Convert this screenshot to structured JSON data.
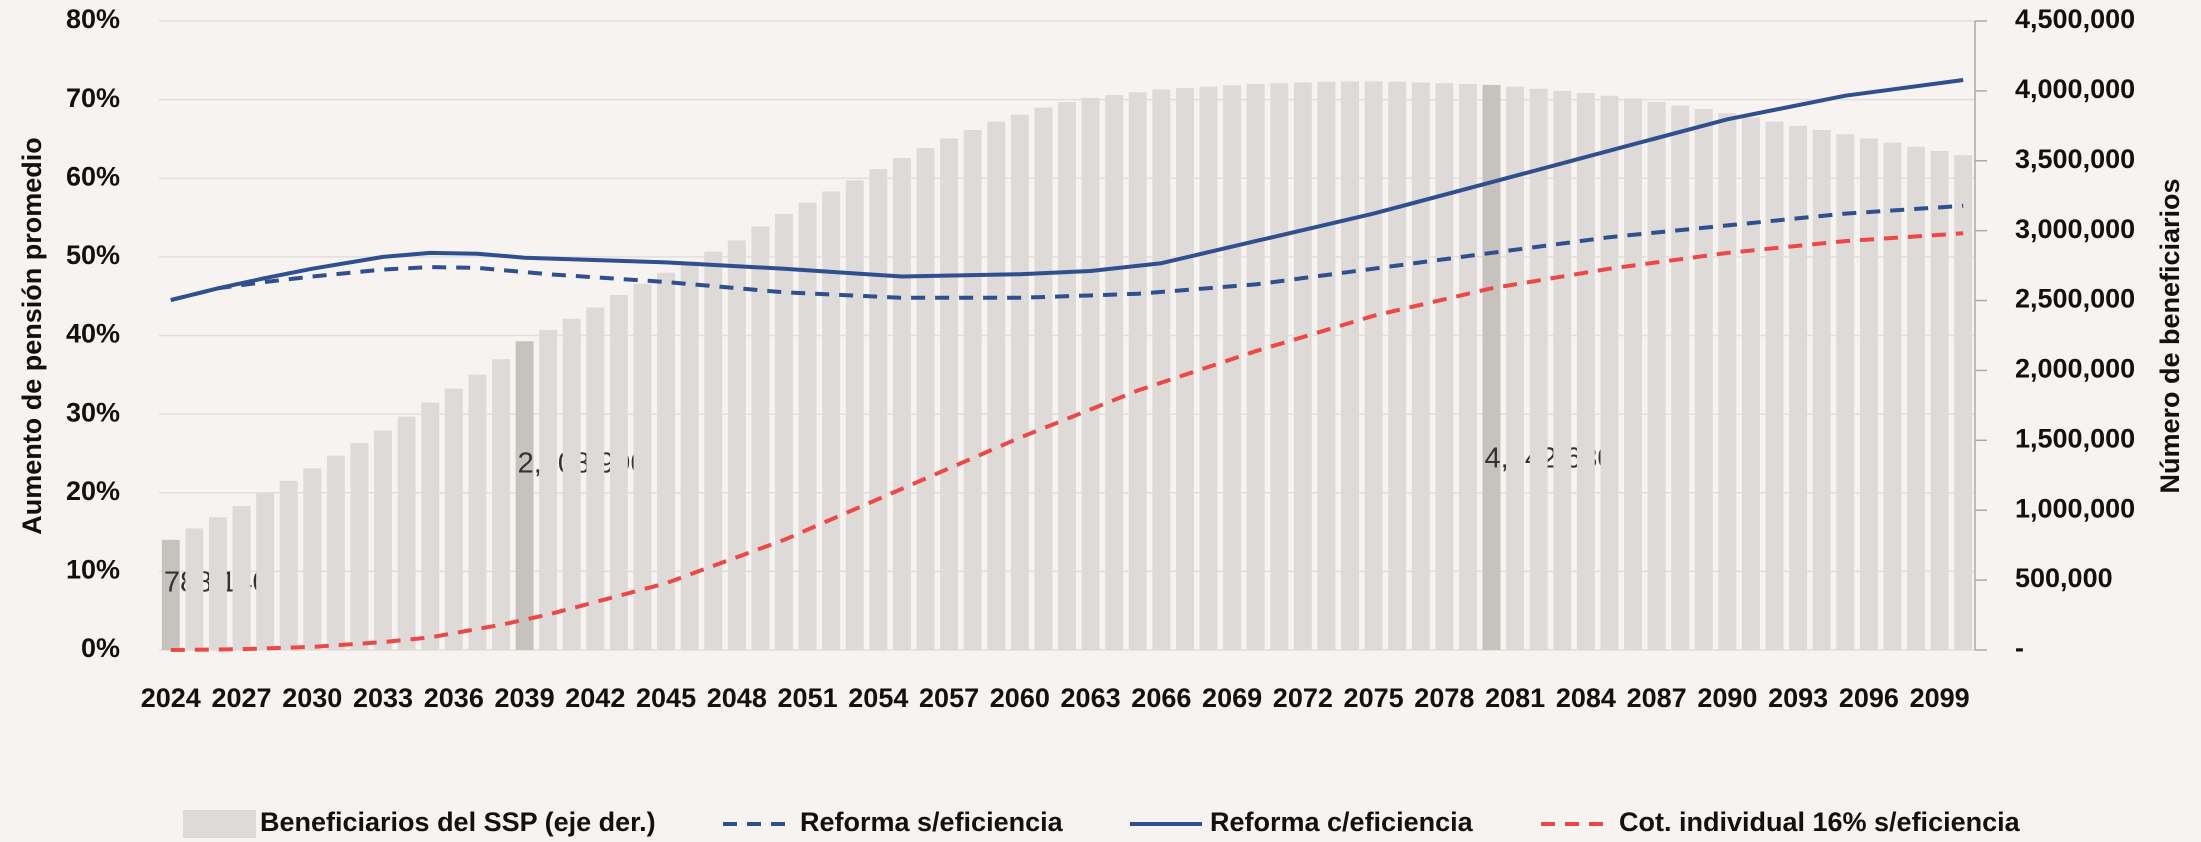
{
  "chart_data": {
    "type": "bar",
    "y_axis_label": "Aumento de pensión promedio",
    "y2_axis_label": "Número de beneficiarios",
    "categories": [
      "2024",
      null,
      null,
      "2027",
      null,
      null,
      "2030",
      null,
      null,
      "2033",
      null,
      null,
      "2036",
      null,
      null,
      "2039",
      null,
      null,
      "2042",
      null,
      null,
      "2045",
      null,
      null,
      "2048",
      null,
      null,
      "2051",
      null,
      null,
      "2054",
      null,
      null,
      "2057",
      null,
      null,
      "2060",
      null,
      null,
      "2063",
      null,
      null,
      "2066",
      null,
      null,
      "2069",
      null,
      null,
      "2072",
      null,
      null,
      "2075",
      null,
      null,
      "2078",
      null,
      null,
      "2081",
      null,
      null,
      "2084",
      null,
      null,
      "2087",
      null,
      null,
      "2090",
      null,
      null,
      "2093",
      null,
      null,
      "2096",
      null,
      null,
      "2099",
      null
    ],
    "bar_series": {
      "name": "Beneficiarios del SSP (eje der.)",
      "axis": "y2",
      "color": "#dedad7",
      "highlight_color": "#c6c2be",
      "values": [
        788140,
        870000,
        950000,
        1030000,
        1120000,
        1210000,
        1300000,
        1390000,
        1480000,
        1570000,
        1670000,
        1770000,
        1870000,
        1970000,
        2080000,
        2208990,
        2290000,
        2370000,
        2450000,
        2540000,
        2620000,
        2700000,
        2780000,
        2850000,
        2930000,
        3030000,
        3120000,
        3200000,
        3280000,
        3360000,
        3440000,
        3520000,
        3590000,
        3660000,
        3720000,
        3780000,
        3830000,
        3880000,
        3920000,
        3950000,
        3970000,
        3990000,
        4010000,
        4020000,
        4030000,
        4040000,
        4050000,
        4055000,
        4060000,
        4065000,
        4068000,
        4068000,
        4066000,
        4060000,
        4055000,
        4048000,
        4042630,
        4030000,
        4015000,
        4000000,
        3985000,
        3965000,
        3945000,
        3920000,
        3895000,
        3870000,
        3840000,
        3810000,
        3780000,
        3750000,
        3720000,
        3690000,
        3660000,
        3630000,
        3600000,
        3570000,
        3540000
      ],
      "value_labels": [
        "788,140",
        null,
        null,
        null,
        null,
        null,
        null,
        null,
        null,
        null,
        null,
        null,
        null,
        null,
        null,
        "2,208,990",
        null,
        null,
        null,
        null,
        null,
        null,
        null,
        null,
        null,
        null,
        null,
        null,
        null,
        null,
        null,
        null,
        null,
        null,
        null,
        null,
        null,
        null,
        null,
        null,
        null,
        null,
        null,
        null,
        null,
        null,
        null,
        null,
        null,
        null,
        null,
        null,
        null,
        null,
        null,
        null,
        "4,042,630",
        null,
        null,
        null,
        null,
        null,
        null,
        null,
        null,
        null,
        null,
        null,
        null,
        null,
        null,
        null,
        null,
        null,
        null,
        null,
        null
      ]
    },
    "series": [
      {
        "name": "Reforma s/eficiencia",
        "color": "#2f4f8f",
        "dash": true,
        "x": [
          2024,
          2026,
          2028,
          2030,
          2033,
          2035,
          2037,
          2040,
          2045,
          2050,
          2055,
          2060,
          2065,
          2070,
          2075,
          2080,
          2085,
          2090,
          2095,
          2100
        ],
        "values": [
          44.5,
          46,
          46.8,
          47.5,
          48.4,
          48.7,
          48.6,
          47.8,
          46.8,
          45.5,
          44.8,
          44.8,
          45.3,
          46.5,
          48.5,
          50.5,
          52.5,
          54,
          55.5,
          56.5
        ]
      },
      {
        "name": "Reforma c/eficiencia",
        "color": "#2f4f8f",
        "dash": false,
        "x": [
          2024,
          2026,
          2028,
          2030,
          2033,
          2035,
          2037,
          2039,
          2045,
          2050,
          2055,
          2060,
          2063,
          2066,
          2070,
          2075,
          2080,
          2085,
          2090,
          2095,
          2100
        ],
        "values": [
          44.5,
          46,
          47.3,
          48.5,
          50,
          50.5,
          50.4,
          49.9,
          49.3,
          48.5,
          47.5,
          47.8,
          48.2,
          49.2,
          52,
          55.5,
          59.5,
          63.5,
          67.5,
          70.5,
          72.5
        ]
      },
      {
        "name": "Cot. individual 16% s/eficiencia",
        "color": "#ee4747",
        "dash": true,
        "x": [
          2024,
          2027,
          2030,
          2033,
          2035,
          2038,
          2040,
          2045,
          2050,
          2055,
          2060,
          2065,
          2070,
          2075,
          2080,
          2085,
          2090,
          2095,
          2100
        ],
        "values": [
          0,
          0.1,
          0.4,
          1,
          1.6,
          3.2,
          4.5,
          8.5,
          14,
          20.5,
          27,
          33,
          38,
          42.5,
          46,
          48.5,
          50.5,
          52,
          53
        ]
      }
    ],
    "ylim": [
      0,
      80
    ],
    "yticks": [
      {
        "value": 0,
        "label": "0%"
      },
      {
        "value": 10,
        "label": "10%"
      },
      {
        "value": 20,
        "label": "20%"
      },
      {
        "value": 30,
        "label": "30%"
      },
      {
        "value": 40,
        "label": "40%"
      },
      {
        "value": 50,
        "label": "50%"
      },
      {
        "value": 60,
        "label": "60%"
      },
      {
        "value": 70,
        "label": "70%"
      },
      {
        "value": 80,
        "label": "80%"
      }
    ],
    "y2lim": [
      0,
      4500000
    ],
    "y2ticks": [
      {
        "value": 0,
        "label": "-"
      },
      {
        "value": 500000,
        "label": "500,000"
      },
      {
        "value": 1000000,
        "label": "1,000,000"
      },
      {
        "value": 1500000,
        "label": "1,500,000"
      },
      {
        "value": 2000000,
        "label": "2,000,000"
      },
      {
        "value": 2500000,
        "label": "2,500,000"
      },
      {
        "value": 3000000,
        "label": "3,000,000"
      },
      {
        "value": 3500000,
        "label": "3,500,000"
      },
      {
        "value": 4000000,
        "label": "4,000,000"
      },
      {
        "value": 4500000,
        "label": "4,500,000"
      }
    ],
    "grid": true,
    "legend": "bottom"
  }
}
